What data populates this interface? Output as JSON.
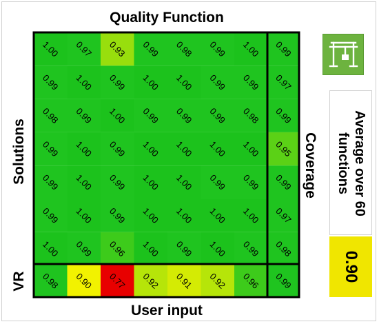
{
  "titles": {
    "top": "Quality Function",
    "left": "Solutions",
    "bottom": "User input",
    "bottom_left": "VR",
    "right": "Coverage"
  },
  "icon": "crane-gantry-icon",
  "average": {
    "label": "Average over 60 functions",
    "value": "0.90"
  },
  "chart_data": {
    "type": "heatmap",
    "columns": 7,
    "rows": [
      [
        "1.00",
        "0.97",
        "0.93",
        "0.99",
        "0.98",
        "0.99",
        "1.00"
      ],
      [
        "0.99",
        "1.00",
        "0.99",
        "1.00",
        "1.00",
        "0.99",
        "0.99"
      ],
      [
        "0.98",
        "0.99",
        "1.00",
        "0.99",
        "0.99",
        "0.99",
        "0.98"
      ],
      [
        "0.99",
        "1.00",
        "0.99",
        "1.00",
        "1.00",
        "1.00",
        "1.00"
      ],
      [
        "0.99",
        "1.00",
        "0.99",
        "1.00",
        "1.00",
        "0.99",
        "0.99"
      ],
      [
        "0.99",
        "1.00",
        "0.99",
        "1.00",
        "1.00",
        "1.00",
        "1.00"
      ],
      [
        "1.00",
        "0.99",
        "0.96",
        "1.00",
        "0.99",
        "1.00",
        "0.99"
      ]
    ],
    "coverage": [
      "0.99",
      "0.97",
      "0.99",
      "0.95",
      "0.99",
      "0.97",
      "0.98"
    ],
    "vr_row": [
      "0.98",
      "0.90",
      "0.77",
      "0.92",
      "0.91",
      "0.92",
      "0.96"
    ],
    "vr_coverage": "0.99",
    "color_scale": {
      "low": "#e80000",
      "mid": "#f2f200",
      "high": "#1fc41f"
    }
  }
}
